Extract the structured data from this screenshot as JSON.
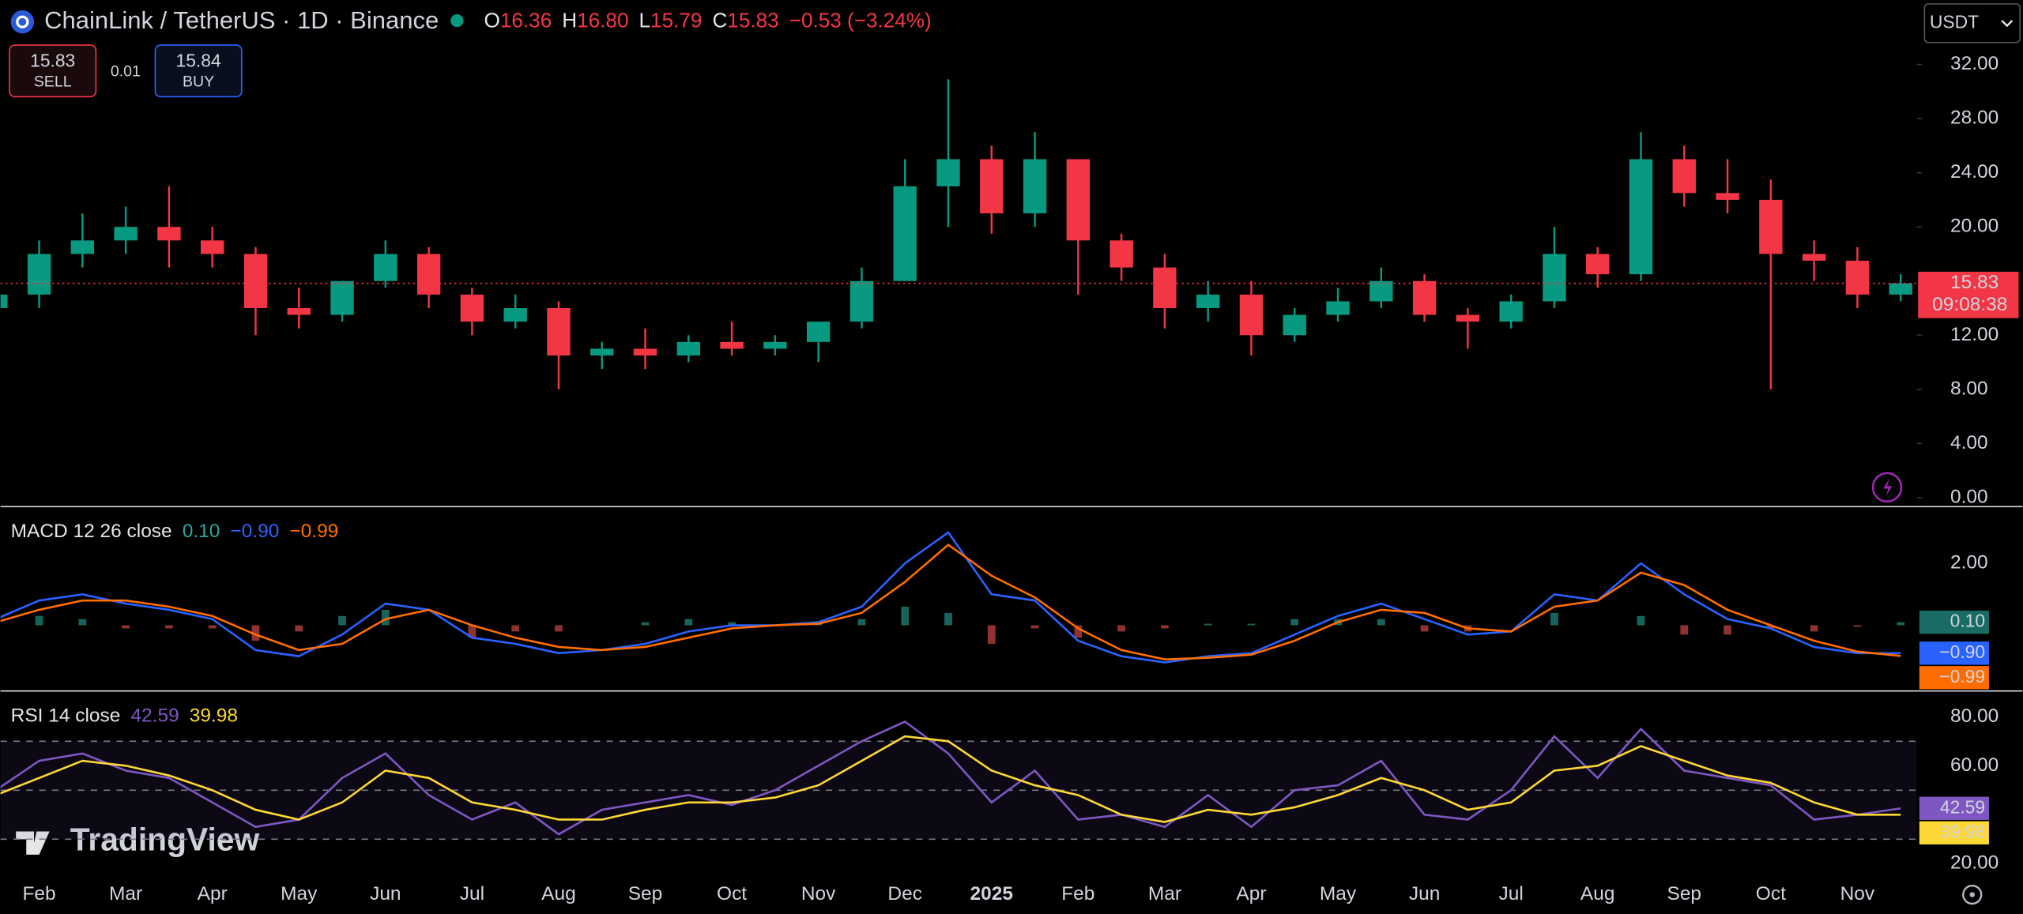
{
  "header": {
    "symbol": "ChainLink / TetherUS · 1D · Binance",
    "ohlc": [
      {
        "label": "O",
        "value": "16.36"
      },
      {
        "label": "H",
        "value": "16.80"
      },
      {
        "label": "L",
        "value": "15.79"
      },
      {
        "label": "C",
        "value": "15.83"
      }
    ],
    "change": "−0.53 (−3.24%)"
  },
  "trade": {
    "sell_price": "15.83",
    "sell_label": "SELL",
    "spread": "0.01",
    "buy_price": "15.84",
    "buy_label": "BUY"
  },
  "currency": "USDT",
  "watermark": "TradingView",
  "chart_data": [
    {
      "type": "candlestick",
      "categories": [
        null,
        "Feb",
        null,
        "Mar",
        null,
        "Apr",
        null,
        "May",
        null,
        "Jun",
        null,
        "Jul",
        null,
        "Aug",
        null,
        "Sep",
        null,
        "Oct",
        null,
        "Nov",
        null,
        "Dec",
        null,
        "2025",
        null,
        "Feb",
        null,
        "Mar",
        null,
        "Apr",
        null,
        "May",
        null,
        "Jun",
        null,
        "Jul",
        null,
        "Aug",
        null,
        "Sep",
        null,
        "Oct",
        null,
        "Nov",
        null
      ],
      "values": [
        [
          14,
          17,
          13,
          15
        ],
        [
          15,
          19,
          14,
          18
        ],
        [
          18,
          21,
          17,
          19
        ],
        [
          19,
          21.5,
          18,
          20
        ],
        [
          20,
          23,
          17,
          19
        ],
        [
          19,
          20,
          17,
          18
        ],
        [
          18,
          18.5,
          12,
          14
        ],
        [
          14,
          15.5,
          12.5,
          13.5
        ],
        [
          13.5,
          16,
          13,
          16
        ],
        [
          16,
          19,
          15.5,
          18
        ],
        [
          18,
          18.5,
          14,
          15
        ],
        [
          15,
          15.5,
          12,
          13
        ],
        [
          13,
          15,
          12.5,
          14
        ],
        [
          14,
          14.5,
          8,
          10.5
        ],
        [
          10.5,
          11.5,
          9.5,
          11
        ],
        [
          11,
          12.5,
          9.5,
          10.5
        ],
        [
          10.5,
          12,
          10,
          11.5
        ],
        [
          11.5,
          13,
          10.5,
          11
        ],
        [
          11,
          12,
          10.5,
          11.5
        ],
        [
          11.5,
          12.5,
          10,
          13
        ],
        [
          13,
          17,
          12.5,
          16
        ],
        [
          16,
          25,
          16,
          23
        ],
        [
          23,
          30.9,
          20,
          25
        ],
        [
          25,
          26,
          19.5,
          21
        ],
        [
          21,
          27,
          20,
          25
        ],
        [
          25,
          25,
          15,
          19
        ],
        [
          19,
          19.5,
          16,
          17
        ],
        [
          17,
          18,
          12.5,
          14
        ],
        [
          14,
          16,
          13,
          15
        ],
        [
          15,
          16,
          10.5,
          12
        ],
        [
          12,
          14,
          11.5,
          13.5
        ],
        [
          13.5,
          15.5,
          13,
          14.5
        ],
        [
          14.5,
          17,
          14,
          16
        ],
        [
          16,
          16.5,
          13,
          13.5
        ],
        [
          13.5,
          14,
          11,
          13
        ],
        [
          13,
          15,
          12.5,
          14.5
        ],
        [
          14.5,
          20,
          14,
          18
        ],
        [
          18,
          18.5,
          15.5,
          16.5
        ],
        [
          16.5,
          27,
          16,
          25
        ],
        [
          25,
          26,
          21.5,
          22.5
        ],
        [
          22.5,
          25,
          21,
          22
        ],
        [
          22,
          23.5,
          8,
          18
        ],
        [
          18,
          19,
          16,
          17.5
        ],
        [
          17.5,
          18.5,
          14,
          15
        ],
        [
          15,
          16.5,
          14.5,
          15.83
        ]
      ],
      "up_color": "#089981",
      "down_color": "#f23645",
      "ylim": [
        -0.57,
        36.76
      ],
      "yticks": [
        {
          "value": 0,
          "label": "0.00"
        },
        {
          "value": 4,
          "label": "4.00"
        },
        {
          "value": 8,
          "label": "8.00"
        },
        {
          "value": 12,
          "label": "12.00"
        },
        {
          "value": 20,
          "label": "20.00"
        },
        {
          "value": 24,
          "label": "24.00"
        },
        {
          "value": 28,
          "label": "28.00"
        },
        {
          "value": 32,
          "label": "32.00"
        }
      ],
      "last_price": 15.83,
      "countdown": "09:08:38"
    },
    {
      "type": "line",
      "title": "MACD 12 26 close",
      "series": [
        {
          "name": "Histogram",
          "type": "bar",
          "color": "#26a69a",
          "down_color": "#ef5350",
          "last_label": "0.10",
          "values": [
            0.1,
            0.3,
            0.2,
            -0.1,
            -0.1,
            -0.1,
            -0.5,
            -0.2,
            0.3,
            0.5,
            0,
            -0.4,
            -0.2,
            -0.2,
            0,
            0.1,
            0.2,
            0.1,
            0,
            0.05,
            0.2,
            0.6,
            0.4,
            -0.6,
            -0.1,
            -0.4,
            -0.2,
            -0.1,
            0.05,
            0.05,
            0.2,
            0.2,
            0.2,
            -0.2,
            -0.2,
            0,
            0.4,
            0,
            0.3,
            -0.3,
            -0.3,
            -0.1,
            -0.2,
            -0.05,
            0.1
          ]
        },
        {
          "name": "MACD",
          "color": "#2962ff",
          "last_label": "−0.90",
          "values": [
            0.2,
            0.8,
            1.0,
            0.7,
            0.5,
            0.2,
            -0.8,
            -1.0,
            -0.3,
            0.7,
            0.5,
            -0.4,
            -0.6,
            -0.9,
            -0.8,
            -0.6,
            -0.2,
            0,
            0,
            0.1,
            0.6,
            2.0,
            3.0,
            1.0,
            0.8,
            -0.5,
            -1.0,
            -1.2,
            -1.0,
            -0.9,
            -0.3,
            0.3,
            0.7,
            0.2,
            -0.3,
            -0.2,
            1.0,
            0.8,
            2.0,
            1.0,
            0.2,
            -0.1,
            -0.7,
            -0.9,
            -0.9
          ]
        },
        {
          "name": "Signal",
          "color": "#ff6d00",
          "last_label": "−0.99",
          "values": [
            0.1,
            0.5,
            0.8,
            0.8,
            0.6,
            0.3,
            -0.3,
            -0.8,
            -0.6,
            0.2,
            0.5,
            0,
            -0.4,
            -0.7,
            -0.8,
            -0.7,
            -0.4,
            -0.1,
            0,
            0.05,
            0.4,
            1.4,
            2.6,
            1.6,
            0.9,
            -0.1,
            -0.8,
            -1.1,
            -1.05,
            -0.95,
            -0.5,
            0.1,
            0.5,
            0.4,
            -0.1,
            -0.2,
            0.6,
            0.8,
            1.7,
            1.3,
            0.5,
            0,
            -0.5,
            -0.85,
            -0.99
          ]
        }
      ],
      "ylim": [
        -2.08,
        3.79
      ],
      "yticks": [
        {
          "value": 2,
          "label": "2.00"
        }
      ]
    },
    {
      "type": "line",
      "title": "RSI 14 close",
      "series": [
        {
          "name": "RSI",
          "color": "#7e57c2",
          "last_label": "42.59",
          "values": [
            50,
            62,
            65,
            58,
            55,
            45,
            35,
            38,
            55,
            65,
            48,
            38,
            45,
            32,
            42,
            45,
            48,
            44,
            50,
            60,
            70,
            78,
            65,
            45,
            58,
            38,
            40,
            35,
            48,
            35,
            50,
            52,
            62,
            40,
            38,
            50,
            72,
            55,
            75,
            58,
            55,
            52,
            38,
            40,
            42.59
          ]
        },
        {
          "name": "RSI-based MA",
          "color": "#fdd835",
          "last_label": "39.98",
          "values": [
            48,
            55,
            62,
            60,
            56,
            50,
            42,
            38,
            45,
            58,
            55,
            45,
            42,
            38,
            38,
            42,
            45,
            45,
            47,
            52,
            62,
            72,
            70,
            58,
            52,
            48,
            40,
            37,
            42,
            40,
            43,
            48,
            55,
            50,
            42,
            45,
            58,
            60,
            68,
            62,
            56,
            53,
            45,
            40,
            39.98
          ]
        }
      ],
      "ylim": [
        14.7,
        90
      ],
      "yticks": [
        {
          "value": 20,
          "label": "20.00"
        },
        {
          "value": 60,
          "label": "60.00"
        },
        {
          "value": 80,
          "label": "80.00"
        }
      ],
      "levels": [
        70,
        50,
        30
      ]
    }
  ]
}
